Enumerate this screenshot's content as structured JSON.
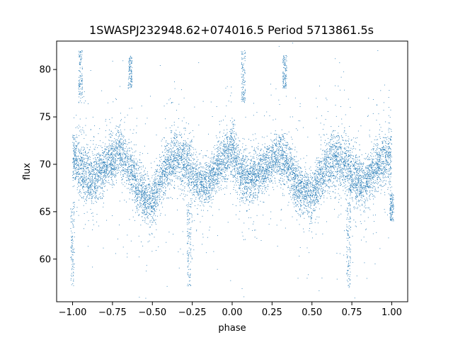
{
  "chart_data": {
    "type": "scatter",
    "title": "1SWASPJ232948.62+074016.5 Period 5713861.5s",
    "xlabel": "phase",
    "ylabel": "flux",
    "xlim": [
      -1.1,
      1.1
    ],
    "ylim": [
      55.5,
      83
    ],
    "x_ticks": [
      -1.0,
      -0.75,
      -0.5,
      -0.25,
      0.0,
      0.25,
      0.5,
      0.75,
      1.0
    ],
    "x_tick_labels": [
      "−1.00",
      "−0.75",
      "−0.50",
      "−0.25",
      "0.00",
      "0.25",
      "0.50",
      "0.75",
      "1.00"
    ],
    "y_ticks": [
      60,
      65,
      70,
      75,
      80
    ],
    "y_tick_labels": [
      "60",
      "65",
      "70",
      "75",
      "80"
    ],
    "grid": false,
    "point_color": "#1f77b4",
    "series": [
      {
        "phase": [
          -1.0,
          -0.95,
          -0.9,
          -0.85,
          -0.8,
          -0.75,
          -0.7,
          -0.65,
          -0.6,
          -0.55,
          -0.5,
          -0.45,
          -0.4,
          -0.35,
          -0.3,
          -0.25,
          -0.2,
          -0.15,
          -0.1,
          -0.05,
          0.0,
          0.05,
          0.1,
          0.15,
          0.2,
          0.25,
          0.3,
          0.35,
          0.4,
          0.45,
          0.5,
          0.55,
          0.6,
          0.65,
          0.7,
          0.75,
          0.8,
          0.85,
          0.9,
          0.95,
          1.0
        ],
        "flux_center": [
          71.0,
          69.5,
          68.5,
          68.8,
          69.5,
          70.5,
          71.5,
          70.0,
          68.0,
          66.5,
          66.0,
          68.5,
          70.0,
          70.5,
          70.5,
          69.0,
          68.0,
          68.0,
          69.5,
          70.5,
          71.5,
          69.0,
          68.5,
          68.8,
          69.5,
          70.5,
          71.0,
          70.0,
          68.0,
          67.0,
          66.5,
          68.5,
          70.0,
          70.5,
          70.0,
          69.0,
          68.0,
          68.5,
          69.5,
          70.5,
          71.0
        ],
        "flux_spread": [
          1.8,
          1.8,
          1.9,
          1.8,
          1.6,
          1.6,
          1.8,
          1.8,
          1.8,
          1.8,
          1.8,
          1.8,
          1.9,
          2.0,
          2.2,
          2.0,
          1.6,
          1.5,
          1.6,
          1.8,
          1.9,
          1.9,
          1.8,
          1.6,
          1.6,
          1.6,
          1.8,
          1.8,
          1.8,
          1.8,
          1.8,
          1.8,
          1.9,
          2.0,
          2.2,
          2.0,
          1.6,
          1.6,
          1.7,
          1.9,
          2.0
        ]
      }
    ],
    "outlier_bands": [
      {
        "phase": -0.95,
        "flux_min": 76.5,
        "flux_max": 82.0
      },
      {
        "phase": -0.64,
        "flux_min": 78.0,
        "flux_max": 81.5
      },
      {
        "phase": 0.07,
        "flux_min": 76.5,
        "flux_max": 82.0
      },
      {
        "phase": 0.33,
        "flux_min": 78.0,
        "flux_max": 81.5
      },
      {
        "phase": -1.0,
        "flux_min": 57.0,
        "flux_max": 66.0
      },
      {
        "phase": -0.27,
        "flux_min": 57.0,
        "flux_max": 66.0
      },
      {
        "phase": 0.73,
        "flux_min": 57.0,
        "flux_max": 66.0
      },
      {
        "phase": 1.0,
        "flux_min": 64.0,
        "flux_max": 67.0
      }
    ]
  }
}
